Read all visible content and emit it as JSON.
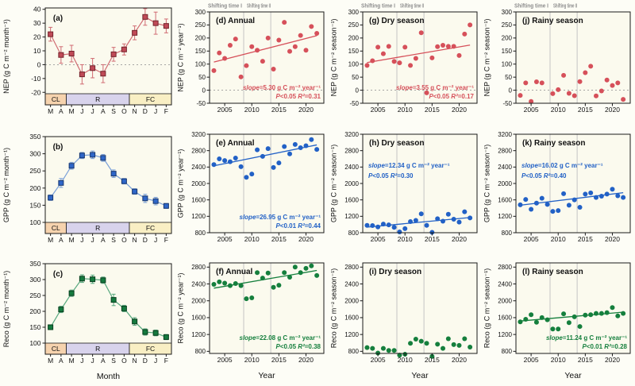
{
  "figure": {
    "header": {
      "label1": "Shifting time I",
      "label2": "Shifting time II"
    },
    "xlabel_month": "Month",
    "xlabel_year": "Year",
    "colors": {
      "nep": {
        "dot": "#d6505a",
        "line": "#d06b72",
        "fill": "#c04a57",
        "edge": "#74232c"
      },
      "gpp": {
        "dot": "#2261c6",
        "line": "#7aa0d8",
        "fill": "#2f66c8",
        "edge": "#17366e"
      },
      "reco": {
        "dot": "#157f3d",
        "line": "#57a87e",
        "fill": "#157a3e",
        "edge": "#083f1f"
      },
      "band_cl": "#f6d3ae",
      "band_r": "#d8d3ec",
      "band_fc": "#f9efc4",
      "plot_bg": "#fbfaee",
      "grid": "#c4c4c4",
      "zero": "#9a9a9a",
      "header": "#8c8c8c",
      "frame": "#1a1a1a"
    }
  },
  "chart_data": {
    "type": "multi-panel",
    "months": [
      "M",
      "A",
      "M",
      "J",
      "J",
      "A",
      "S",
      "O",
      "N",
      "D",
      "J",
      "F"
    ],
    "years": [
      2003,
      2004,
      2005,
      2006,
      2007,
      2008,
      2009,
      2010,
      2011,
      2012,
      2013,
      2014,
      2015,
      2016,
      2017,
      2018,
      2019,
      2020,
      2021,
      2022
    ],
    "xticks_years": [
      2005,
      2010,
      2015,
      2020
    ],
    "xlim_years": [
      2002.2,
      2023.3
    ],
    "shift_lines": [
      2008.5,
      2013.5
    ],
    "season_bands": [
      {
        "label": "CL",
        "from": 0,
        "to": 2,
        "color_key": "band_cl"
      },
      {
        "label": "R",
        "from": 2,
        "to": 8,
        "color_key": "band_r"
      },
      {
        "label": "FC",
        "from": 8,
        "to": 12,
        "color_key": "band_fc"
      }
    ],
    "panels": [
      {
        "id": "a",
        "kind": "monthly",
        "series": "NEP",
        "label": "(a)",
        "ylabel": "NEP (g C m⁻² month⁻¹)",
        "xlabel": null,
        "values": [
          22,
          7,
          8,
          -7,
          -2.5,
          -6.5,
          7.5,
          11,
          23,
          34.5,
          30,
          28
        ],
        "errors": [
          5,
          6,
          6,
          7,
          7,
          6.5,
          5,
          4,
          5,
          6,
          8,
          5
        ],
        "ylim": [
          -21,
          41
        ],
        "yticks": [
          -20,
          -10,
          0,
          10,
          20,
          30,
          40
        ],
        "zero_line": true,
        "color": "nep"
      },
      {
        "id": "d",
        "kind": "scatter",
        "series": "NEP",
        "label": "(d) Annual",
        "ylabel": "NEP (g C m⁻² year⁻¹)",
        "xlabel": null,
        "values": [
          75,
          143,
          122,
          172,
          196,
          51,
          94,
          167,
          153,
          111,
          200,
          81,
          192,
          260,
          149,
          167,
          210,
          153,
          244,
          218
        ],
        "ylim": [
          -50,
          300
        ],
        "yticks": [
          -50,
          0,
          50,
          100,
          150,
          200,
          250,
          300
        ],
        "zero_line": true,
        "trend": {
          "y_start": 108,
          "y_end": 209
        },
        "stats": {
          "line1": "slope=5.30 g C m⁻² year⁻¹",
          "line2": "P<0.05  R²=0.31",
          "pos": "br"
        },
        "color": "nep",
        "header": true
      },
      {
        "id": "g",
        "kind": "scatter",
        "series": "NEP",
        "label": "(g) Dry season",
        "ylabel": "NEP (g C m⁻² season⁻¹)",
        "xlabel": null,
        "values": [
          95,
          113,
          165,
          140,
          168,
          110,
          105,
          165,
          95,
          122,
          220,
          -10,
          124,
          167,
          172,
          168,
          168,
          133,
          215,
          250
        ],
        "ylim": [
          -50,
          300
        ],
        "yticks": [
          -50,
          0,
          50,
          100,
          150,
          200,
          250,
          300
        ],
        "zero_line": true,
        "trend": {
          "y_start": 106,
          "y_end": 173
        },
        "stats": {
          "line1": "slope=3.55 g C m⁻² year⁻¹",
          "line2": "P<0.05  R²=0.17",
          "pos": "br"
        },
        "color": "nep",
        "header": true
      },
      {
        "id": "j",
        "kind": "scatter",
        "series": "NEP",
        "label": "(j) Rainy season",
        "ylabel": "NEP (g C m⁻² season⁻¹)",
        "xlabel": null,
        "values": [
          -20,
          28,
          -43,
          32,
          28,
          null,
          -13,
          2,
          57,
          -12,
          -21,
          33,
          67,
          92,
          -22,
          -3,
          39,
          18,
          28,
          -35
        ],
        "ylim": [
          -50,
          300
        ],
        "yticks": [
          -50,
          0,
          50,
          100,
          150,
          200,
          250,
          300
        ],
        "zero_line": true,
        "trend": null,
        "stats": null,
        "color": "nep",
        "header": true
      },
      {
        "id": "b",
        "kind": "monthly",
        "series": "GPP",
        "label": "(b)",
        "ylabel": "GPP (g C m⁻² month⁻¹)",
        "xlabel": null,
        "values": [
          172,
          215,
          265,
          295,
          297,
          288,
          242,
          220,
          190,
          170,
          162,
          148
        ],
        "errors": [
          8,
          13,
          10,
          9,
          11,
          10,
          11,
          8,
          8,
          12,
          11,
          7
        ],
        "ylim": [
          100,
          350
        ],
        "yticks": [
          100,
          150,
          200,
          250,
          300,
          350
        ],
        "zero_line": false,
        "color": "gpp"
      },
      {
        "id": "e",
        "kind": "scatter",
        "series": "GPP",
        "label": "(e) Annual",
        "ylabel": "GPP (g C m⁻² year⁻¹)",
        "xlabel": null,
        "values": [
          2460,
          2600,
          2560,
          2530,
          2620,
          2410,
          2150,
          2230,
          2820,
          2660,
          2850,
          2390,
          2500,
          2900,
          2720,
          2950,
          2870,
          2920,
          3070,
          2830
        ],
        "ylim": [
          800,
          3200
        ],
        "yticks": [
          800,
          1200,
          1600,
          2000,
          2400,
          2800,
          3200
        ],
        "zero_line": false,
        "trend": {
          "y_start": 2430,
          "y_end": 2940
        },
        "stats": {
          "line1": "slope=26.95 g C m⁻² year⁻¹",
          "line2": "P<0.01  R²=0.44",
          "pos": "br"
        },
        "color": "gpp",
        "header": false
      },
      {
        "id": "h",
        "kind": "scatter",
        "series": "GPP",
        "label": "(h) Dry season",
        "ylabel": "GPP (g C m⁻² season⁻¹)",
        "xlabel": null,
        "values": [
          980,
          975,
          940,
          1010,
          990,
          930,
          820,
          900,
          1070,
          1100,
          1260,
          980,
          810,
          1140,
          1080,
          1250,
          1130,
          1060,
          1310,
          1160
        ],
        "ylim": [
          800,
          3200
        ],
        "yticks": [
          800,
          1200,
          1600,
          2000,
          2400,
          2800,
          3200
        ],
        "zero_line": false,
        "trend": {
          "y_start": 935,
          "y_end": 1170
        },
        "stats": {
          "line1": "slope=12.34 g C m⁻² year⁻¹",
          "line2": "P<0.05  R²=0.30",
          "pos": "tl"
        },
        "color": "gpp",
        "header": false
      },
      {
        "id": "k",
        "kind": "scatter",
        "series": "GPP",
        "label": "(k) Rainy season",
        "ylabel": "GPP (g C m⁻² season⁻¹)",
        "xlabel": null,
        "values": [
          1480,
          1610,
          1370,
          1520,
          1640,
          1490,
          1320,
          1340,
          1750,
          1470,
          1600,
          1420,
          1740,
          1770,
          1660,
          1690,
          1740,
          1860,
          1700,
          1660
        ],
        "ylim": [
          800,
          3200
        ],
        "yticks": [
          800,
          1200,
          1600,
          2000,
          2400,
          2800,
          3200
        ],
        "zero_line": false,
        "trend": {
          "y_start": 1470,
          "y_end": 1775
        },
        "stats": {
          "line1": "slope=16.02 g C m⁻² year⁻¹",
          "line2": "P<0.05  R²=0.40",
          "pos": "tl"
        },
        "color": "gpp",
        "header": false
      },
      {
        "id": "c",
        "kind": "monthly",
        "series": "Reco",
        "label": "(c)",
        "ylabel": "Reco (g C m⁻² month⁻¹)",
        "xlabel": "Month",
        "values": [
          150,
          206,
          257,
          303,
          301,
          298,
          236,
          209,
          168,
          135,
          132,
          119
        ],
        "errors": [
          7,
          10,
          10,
          12,
          13,
          10,
          18,
          10,
          12,
          10,
          9,
          8
        ],
        "ylim": [
          100,
          350
        ],
        "yticks": [
          100,
          150,
          200,
          250,
          300,
          350
        ],
        "zero_line": false,
        "color": "reco"
      },
      {
        "id": "f",
        "kind": "scatter",
        "series": "Reco",
        "label": "(f) Annual",
        "ylabel": "Reco (g C m⁻² year⁻¹)",
        "xlabel": "Year",
        "values": [
          2390,
          2450,
          2420,
          2360,
          2410,
          2360,
          2050,
          2070,
          2670,
          2540,
          2660,
          2320,
          2370,
          2670,
          2560,
          2800,
          2670,
          2770,
          2830,
          2600
        ],
        "ylim": [
          750,
          2900
        ],
        "yticks": [
          800,
          1200,
          1600,
          2000,
          2400,
          2800
        ],
        "zero_line": false,
        "trend": {
          "y_start": 2300,
          "y_end": 2720
        },
        "stats": {
          "line1": "slope=22.08 g C m⁻² year⁻¹",
          "line2": "P<0.05  R²=0.38",
          "pos": "br"
        },
        "color": "reco",
        "header": false
      },
      {
        "id": "i",
        "kind": "scatter",
        "series": "Reco",
        "label": "(i) Dry season",
        "ylabel": "Reco (g C m⁻² season⁻¹)",
        "xlabel": "Year",
        "values": [
          890,
          870,
          760,
          870,
          820,
          820,
          710,
          730,
          990,
          1090,
          1040,
          990,
          680,
          970,
          870,
          1100,
          960,
          940,
          1100,
          900
        ],
        "ylim": [
          750,
          2900
        ],
        "yticks": [
          800,
          1200,
          1600,
          2000,
          2400,
          2800
        ],
        "zero_line": false,
        "trend": null,
        "stats": null,
        "color": "reco",
        "header": false
      },
      {
        "id": "l",
        "kind": "scatter",
        "series": "Reco",
        "label": "(l) Rainy season",
        "ylabel": "Reco (g C m⁻² season⁻¹)",
        "xlabel": "Year",
        "values": [
          1500,
          1560,
          1670,
          1490,
          1600,
          1550,
          1330,
          1330,
          1690,
          1480,
          1620,
          1390,
          1660,
          1670,
          1700,
          1700,
          1720,
          1840,
          1640,
          1700
        ],
        "ylim": [
          750,
          2900
        ],
        "yticks": [
          800,
          1200,
          1600,
          2000,
          2400,
          2800
        ],
        "zero_line": false,
        "trend": {
          "y_start": 1520,
          "y_end": 1730
        },
        "stats": {
          "line1": "slope=11.24 g C m⁻² year⁻¹",
          "line2": "P<0.01  R²=0.28",
          "pos": "br"
        },
        "color": "reco",
        "header": false
      }
    ]
  }
}
